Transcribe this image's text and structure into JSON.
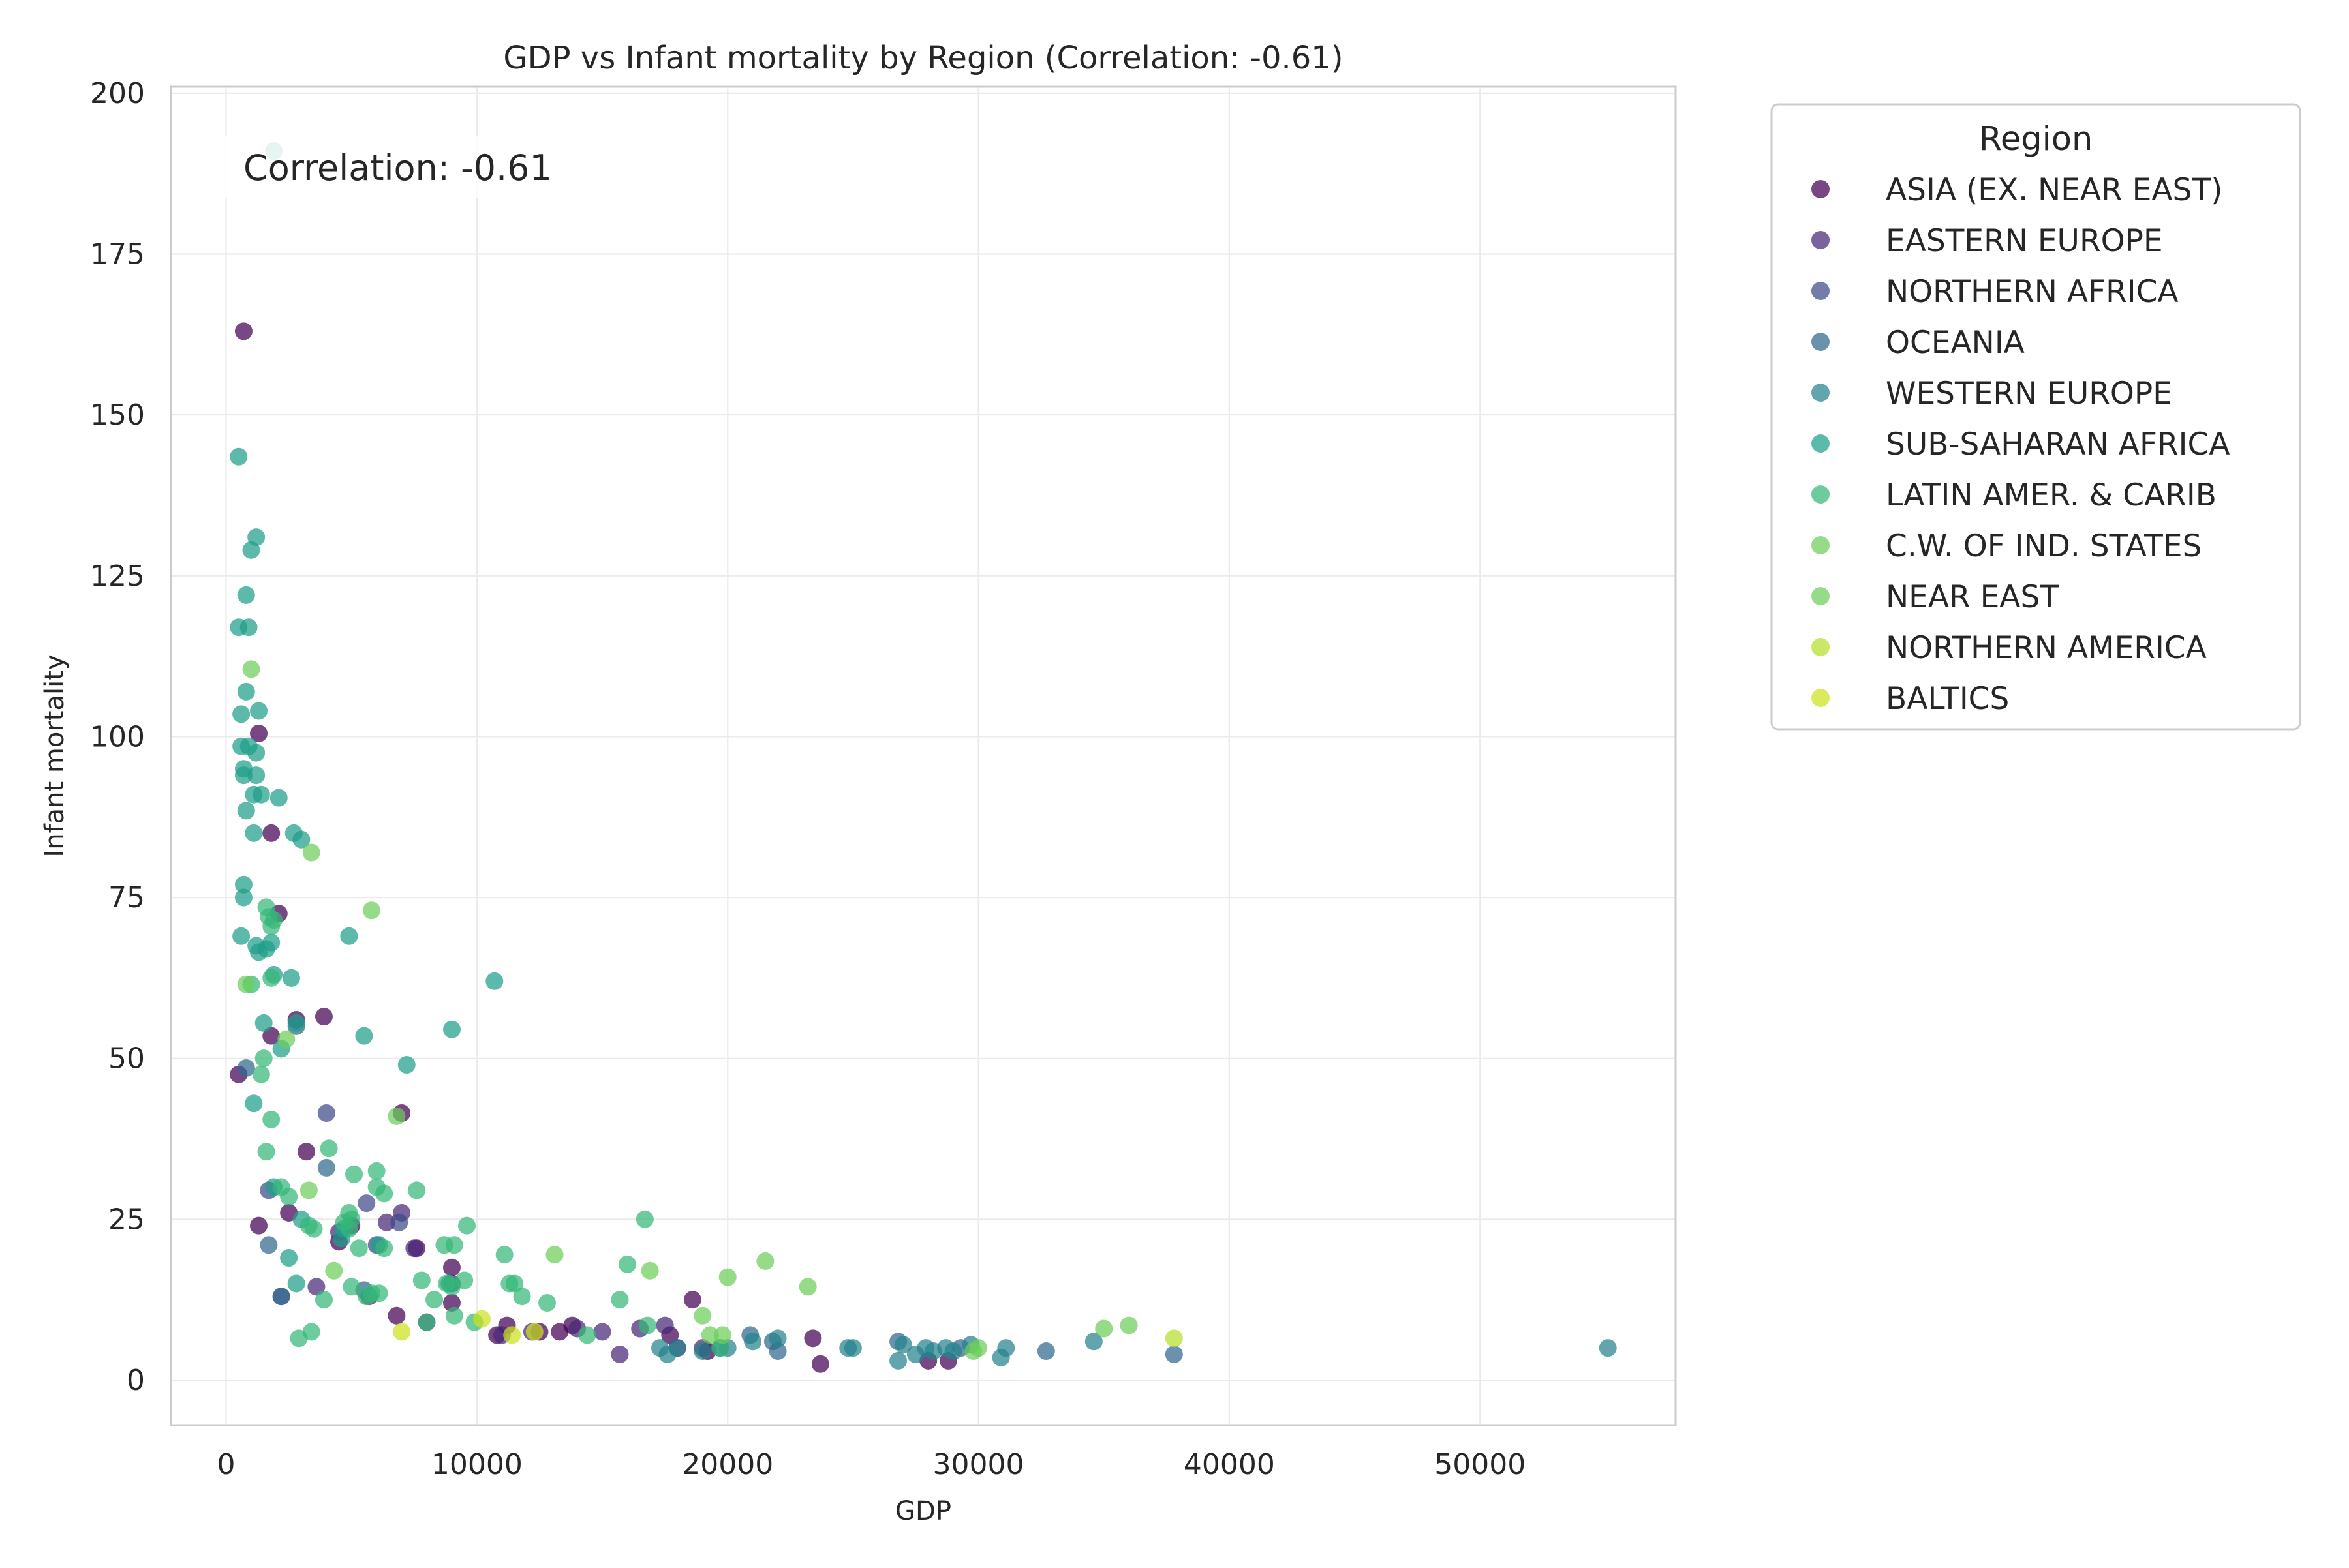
{
  "chart_data": {
    "type": "scatter",
    "title": "GDP vs Infant mortality by Region (Correlation: -0.61)",
    "xlabel": "GDP",
    "ylabel": "Infant mortality",
    "xlim": [
      -2200,
      57800
    ],
    "ylim": [
      -7,
      201
    ],
    "xticks": [
      0,
      10000,
      20000,
      30000,
      40000,
      50000
    ],
    "yticks": [
      0,
      25,
      50,
      75,
      100,
      125,
      150,
      175,
      200
    ],
    "grid": true,
    "annotation": "Correlation: -0.61",
    "legend": {
      "title": "Region",
      "placement": "outside-right"
    },
    "series": [
      {
        "name": "ASIA (EX. NEAR EAST)",
        "color": "#440154",
        "points": [
          [
            700,
            163
          ],
          [
            500,
            47.5
          ],
          [
            1300,
            100.5
          ],
          [
            1800,
            85
          ],
          [
            2100,
            72.5
          ],
          [
            1800,
            53.5
          ],
          [
            2800,
            56
          ],
          [
            3900,
            56.5
          ],
          [
            3200,
            35.5
          ],
          [
            1300,
            24
          ],
          [
            2500,
            26
          ],
          [
            4500,
            21.5
          ],
          [
            5000,
            24
          ],
          [
            7000,
            41.5
          ],
          [
            6800,
            10
          ],
          [
            7600,
            20.5
          ],
          [
            9000,
            17.5
          ],
          [
            9000,
            12
          ],
          [
            10800,
            7
          ],
          [
            11200,
            8.5
          ],
          [
            12500,
            7.5
          ],
          [
            13300,
            7.5
          ],
          [
            13800,
            8.5
          ],
          [
            17700,
            7
          ],
          [
            18600,
            12.5
          ],
          [
            19200,
            4.5
          ],
          [
            23400,
            6.5
          ],
          [
            23700,
            2.5
          ],
          [
            28000,
            3
          ],
          [
            28800,
            3
          ]
        ]
      },
      {
        "name": "EASTERN EUROPE",
        "color": "#482878",
        "points": [
          [
            3600,
            14.5
          ],
          [
            4500,
            23
          ],
          [
            5700,
            13
          ],
          [
            6400,
            24.5
          ],
          [
            7000,
            26
          ],
          [
            7500,
            20.5
          ],
          [
            8000,
            9
          ],
          [
            9000,
            15
          ],
          [
            11000,
            7
          ],
          [
            12200,
            7.5
          ],
          [
            14000,
            8
          ],
          [
            15000,
            7.5
          ],
          [
            15700,
            4
          ],
          [
            16500,
            8
          ],
          [
            17500,
            8.5
          ],
          [
            18000,
            5
          ],
          [
            19000,
            5
          ]
        ]
      },
      {
        "name": "NORTHERN AFRICA",
        "color": "#3e4989",
        "points": [
          [
            1700,
            29.5
          ],
          [
            2200,
            13
          ],
          [
            4000,
            41.5
          ],
          [
            5600,
            27.5
          ],
          [
            6000,
            21
          ],
          [
            6900,
            24.5
          ]
        ]
      },
      {
        "name": "OCEANIA",
        "color": "#31688e",
        "points": [
          [
            800,
            48.5
          ],
          [
            1700,
            21
          ],
          [
            2200,
            13
          ],
          [
            2800,
            55
          ],
          [
            4000,
            33
          ],
          [
            5500,
            14
          ],
          [
            19700,
            5
          ],
          [
            20900,
            7
          ],
          [
            21800,
            6
          ],
          [
            22000,
            4.5
          ],
          [
            26800,
            6
          ],
          [
            29300,
            5
          ],
          [
            32700,
            4.5
          ],
          [
            37800,
            4
          ]
        ]
      },
      {
        "name": "WESTERN EUROPE",
        "color": "#26828e",
        "points": [
          [
            17300,
            5
          ],
          [
            17600,
            4
          ],
          [
            18000,
            5
          ],
          [
            19000,
            4.5
          ],
          [
            20000,
            5
          ],
          [
            21000,
            6
          ],
          [
            22000,
            6.5
          ],
          [
            24800,
            5
          ],
          [
            25000,
            5
          ],
          [
            26800,
            3
          ],
          [
            27000,
            5.5
          ],
          [
            27500,
            4
          ],
          [
            27900,
            5
          ],
          [
            28200,
            4.5
          ],
          [
            28700,
            5
          ],
          [
            29000,
            4.5
          ],
          [
            29700,
            5.5
          ],
          [
            30900,
            3.5
          ],
          [
            31100,
            5
          ],
          [
            34600,
            6
          ],
          [
            55100,
            5
          ]
        ]
      },
      {
        "name": "SUB-SAHARAN AFRICA",
        "color": "#1f9e89",
        "points": [
          [
            1900,
            191
          ],
          [
            500,
            143.5
          ],
          [
            1200,
            131
          ],
          [
            1000,
            129
          ],
          [
            800,
            122
          ],
          [
            500,
            117
          ],
          [
            900,
            117
          ],
          [
            1300,
            104
          ],
          [
            600,
            103.5
          ],
          [
            800,
            107
          ],
          [
            600,
            98.5
          ],
          [
            900,
            98.5
          ],
          [
            1200,
            97.5
          ],
          [
            700,
            95
          ],
          [
            700,
            94
          ],
          [
            1200,
            94
          ],
          [
            1100,
            91
          ],
          [
            1400,
            91
          ],
          [
            2100,
            90.5
          ],
          [
            800,
            88.5
          ],
          [
            1100,
            85
          ],
          [
            2700,
            85
          ],
          [
            3000,
            84
          ],
          [
            700,
            77
          ],
          [
            700,
            75
          ],
          [
            600,
            69
          ],
          [
            1200,
            67.5
          ],
          [
            1300,
            66.5
          ],
          [
            1600,
            67
          ],
          [
            1800,
            68
          ],
          [
            1900,
            63
          ],
          [
            2600,
            62.5
          ],
          [
            10700,
            62
          ],
          [
            9000,
            54.5
          ],
          [
            5500,
            53.5
          ],
          [
            2200,
            51.5
          ],
          [
            2800,
            55.5
          ],
          [
            1500,
            55.5
          ],
          [
            7200,
            49
          ],
          [
            4900,
            69
          ],
          [
            1100,
            43
          ],
          [
            1900,
            30
          ],
          [
            3000,
            25
          ],
          [
            4700,
            23.5
          ],
          [
            6100,
            21
          ],
          [
            2500,
            19
          ],
          [
            2800,
            15
          ],
          [
            4600,
            22
          ],
          [
            8900,
            15
          ]
        ]
      },
      {
        "name": "LATIN AMER. & CARIB",
        "color": "#35b779",
        "points": [
          [
            1000,
            61.5
          ],
          [
            1600,
            73.5
          ],
          [
            1700,
            72
          ],
          [
            1800,
            70.5
          ],
          [
            1900,
            71.5
          ],
          [
            1800,
            62.5
          ],
          [
            1400,
            47.5
          ],
          [
            1500,
            50
          ],
          [
            1800,
            40.5
          ],
          [
            1600,
            35.5
          ],
          [
            4100,
            36
          ],
          [
            4900,
            23.5
          ],
          [
            5100,
            32
          ],
          [
            6000,
            32.5
          ],
          [
            6000,
            30
          ],
          [
            6300,
            29
          ],
          [
            7600,
            29.5
          ],
          [
            2500,
            28.5
          ],
          [
            2200,
            30
          ],
          [
            3300,
            24
          ],
          [
            3500,
            23.5
          ],
          [
            4700,
            24.5
          ],
          [
            4900,
            26
          ],
          [
            5000,
            25
          ],
          [
            5300,
            20.5
          ],
          [
            6300,
            20.5
          ],
          [
            8700,
            21
          ],
          [
            9100,
            21
          ],
          [
            9600,
            24
          ],
          [
            5000,
            14.5
          ],
          [
            5600,
            13
          ],
          [
            5800,
            13.5
          ],
          [
            6100,
            13.5
          ],
          [
            7800,
            15.5
          ],
          [
            8300,
            12.5
          ],
          [
            8800,
            15
          ],
          [
            9000,
            14.5
          ],
          [
            9500,
            15.5
          ],
          [
            11100,
            19.5
          ],
          [
            11300,
            15
          ],
          [
            11500,
            15
          ],
          [
            11800,
            13
          ],
          [
            12800,
            12
          ],
          [
            14400,
            7
          ],
          [
            15700,
            12.5
          ],
          [
            16000,
            18
          ],
          [
            16700,
            25
          ],
          [
            16800,
            8.5
          ],
          [
            19700,
            5
          ],
          [
            3400,
            7.5
          ],
          [
            2900,
            6.5
          ],
          [
            3900,
            12.5
          ],
          [
            8000,
            9
          ],
          [
            9100,
            10
          ],
          [
            9900,
            9
          ]
        ]
      },
      {
        "name": "C.W. OF IND. STATES",
        "color": "#6ccd5a",
        "points": [
          [
            1000,
            110.5
          ],
          [
            3400,
            82
          ],
          [
            5800,
            73
          ],
          [
            2400,
            53
          ],
          [
            3300,
            29.5
          ],
          [
            4300,
            17
          ],
          [
            13100,
            19.5
          ],
          [
            16900,
            17
          ],
          [
            21500,
            18.5
          ],
          [
            23200,
            14.5
          ]
        ]
      },
      {
        "name": "NEAR EAST",
        "color": "#6ccd5a",
        "points": [
          [
            800,
            61.5
          ],
          [
            6800,
            41
          ],
          [
            19000,
            10
          ],
          [
            19300,
            7
          ],
          [
            19800,
            7
          ],
          [
            20000,
            16
          ],
          [
            29800,
            4.5
          ],
          [
            30000,
            5
          ],
          [
            35000,
            8
          ],
          [
            36000,
            8.5
          ]
        ]
      },
      {
        "name": "NORTHERN AMERICA",
        "color": "#b5de2b",
        "points": [
          [
            37800,
            6.5
          ]
        ]
      },
      {
        "name": "BALTICS",
        "color": "#cde11d",
        "points": [
          [
            7000,
            7.5
          ],
          [
            10200,
            9.5
          ],
          [
            11400,
            7
          ],
          [
            12300,
            7.5
          ]
        ]
      }
    ]
  }
}
